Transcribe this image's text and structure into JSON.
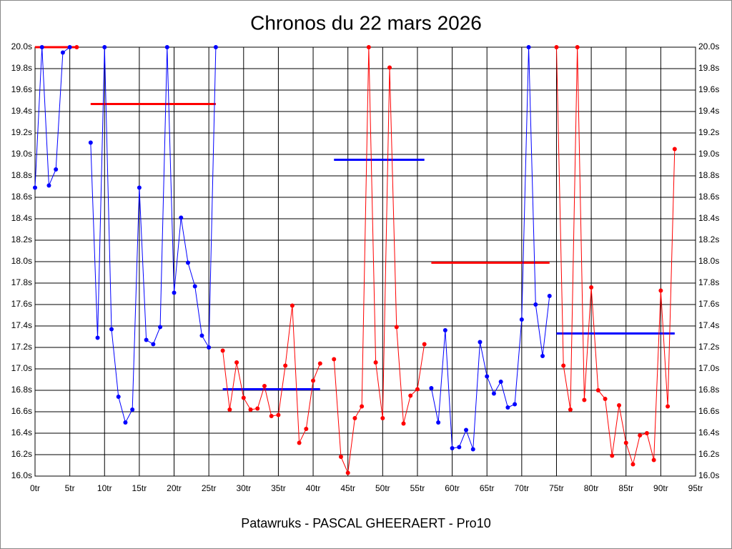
{
  "chart_data": {
    "type": "line",
    "title": "Chronos du 22 mars 2026",
    "footer": "Patawruks - PASCAL GHEERAERT - Pro10",
    "x": [
      0,
      1,
      2,
      3,
      4,
      5,
      6,
      7,
      8,
      9,
      10,
      11,
      12,
      13,
      14,
      15,
      16,
      17,
      18,
      19,
      20,
      21,
      22,
      23,
      24,
      25,
      26,
      27,
      28,
      29,
      30,
      31,
      32,
      33,
      34,
      35,
      36,
      37,
      38,
      39,
      40,
      41,
      42,
      43,
      44,
      45,
      46,
      47,
      48,
      49,
      50,
      51,
      52,
      53,
      54,
      55,
      56,
      57,
      58,
      59,
      60,
      61,
      62,
      63,
      64,
      65,
      66,
      67,
      68,
      69,
      70,
      71,
      72,
      73,
      74,
      75,
      76,
      77,
      78,
      79,
      80,
      81,
      82,
      83,
      84,
      85,
      86,
      87,
      88,
      89,
      90,
      91,
      92
    ],
    "series": [
      {
        "color": "#0000ff",
        "values": [
          18.69,
          20.0,
          18.71,
          18.86,
          19.95,
          20.0,
          null,
          null,
          19.11,
          17.29,
          20.0,
          17.37,
          16.74,
          16.5,
          16.62,
          18.69,
          17.27,
          17.23,
          17.39,
          20.0,
          17.71,
          18.41,
          17.99,
          17.77,
          17.31,
          17.2,
          20.0,
          null,
          null,
          null,
          null,
          null,
          null,
          null,
          null,
          null,
          null,
          null,
          null,
          null,
          null,
          null,
          null,
          null,
          null,
          null,
          null,
          null,
          null,
          null,
          null,
          null,
          null,
          null,
          null,
          null,
          null,
          16.82,
          16.5,
          17.36,
          16.26,
          16.27,
          16.43,
          16.25,
          17.25,
          16.93,
          16.77,
          16.88,
          16.64,
          16.67,
          17.46,
          20.0,
          17.6,
          17.12,
          17.68,
          null,
          null,
          null,
          null,
          null,
          null,
          null,
          null,
          null,
          null,
          null,
          null,
          null,
          null,
          null,
          null,
          null,
          null
        ]
      },
      {
        "color": "#ff0000",
        "values": [
          null,
          null,
          null,
          null,
          null,
          null,
          20.0,
          null,
          null,
          null,
          null,
          null,
          null,
          null,
          null,
          null,
          null,
          null,
          null,
          null,
          null,
          null,
          null,
          null,
          null,
          null,
          null,
          17.17,
          16.62,
          17.06,
          16.73,
          16.62,
          16.63,
          16.84,
          16.56,
          16.57,
          17.03,
          17.59,
          16.31,
          16.44,
          16.89,
          17.05,
          null,
          17.09,
          16.18,
          16.03,
          16.54,
          16.65,
          20.0,
          17.06,
          16.54,
          19.81,
          17.39,
          16.49,
          16.75,
          16.81,
          17.23,
          null,
          null,
          null,
          null,
          null,
          null,
          null,
          null,
          null,
          null,
          null,
          null,
          null,
          null,
          null,
          null,
          null,
          null,
          20.0,
          17.03,
          16.62,
          20.0,
          16.71,
          17.76,
          16.8,
          16.72,
          16.19,
          16.66,
          16.31,
          16.11,
          16.38,
          16.4,
          16.15,
          17.73,
          16.65,
          19.05
        ]
      }
    ],
    "mean_lines": [
      {
        "from": 0,
        "to": 6,
        "value": 20.0,
        "color": "#ff0000"
      },
      {
        "from": 8,
        "to": 26,
        "value": 19.47,
        "color": "#ff0000"
      },
      {
        "from": 27,
        "to": 41,
        "value": 16.81,
        "color": "#0000ff"
      },
      {
        "from": 43,
        "to": 56,
        "value": 18.95,
        "color": "#0000ff"
      },
      {
        "from": 57,
        "to": 74,
        "value": 17.99,
        "color": "#ff0000"
      },
      {
        "from": 75,
        "to": 92,
        "value": 17.33,
        "color": "#0000ff"
      }
    ],
    "xlim": [
      0,
      95
    ],
    "xticks": [
      {
        "value": 0,
        "label": "0tr"
      },
      {
        "value": 5,
        "label": "5tr"
      },
      {
        "value": 10,
        "label": "10tr"
      },
      {
        "value": 15,
        "label": "15tr"
      },
      {
        "value": 20,
        "label": "20tr"
      },
      {
        "value": 25,
        "label": "25tr"
      },
      {
        "value": 30,
        "label": "30tr"
      },
      {
        "value": 35,
        "label": "35tr"
      },
      {
        "value": 40,
        "label": "40tr"
      },
      {
        "value": 45,
        "label": "45tr"
      },
      {
        "value": 50,
        "label": "50tr"
      },
      {
        "value": 55,
        "label": "55tr"
      },
      {
        "value": 60,
        "label": "60tr"
      },
      {
        "value": 65,
        "label": "65tr"
      },
      {
        "value": 70,
        "label": "70tr"
      },
      {
        "value": 75,
        "label": "75tr"
      },
      {
        "value": 80,
        "label": "80tr"
      },
      {
        "value": 85,
        "label": "85tr"
      },
      {
        "value": 90,
        "label": "90tr"
      },
      {
        "value": 95,
        "label": "95tr"
      }
    ],
    "ylim": [
      16.0,
      20.0
    ],
    "yticks": [
      {
        "value": 16.0,
        "label": "16.0s"
      },
      {
        "value": 16.2,
        "label": "16.2s"
      },
      {
        "value": 16.4,
        "label": "16.4s"
      },
      {
        "value": 16.6,
        "label": "16.6s"
      },
      {
        "value": 16.8,
        "label": "16.8s"
      },
      {
        "value": 17.0,
        "label": "17.0s"
      },
      {
        "value": 17.2,
        "label": "17.2s"
      },
      {
        "value": 17.4,
        "label": "17.4s"
      },
      {
        "value": 17.6,
        "label": "17.6s"
      },
      {
        "value": 17.8,
        "label": "17.8s"
      },
      {
        "value": 18.0,
        "label": "18.0s"
      },
      {
        "value": 18.2,
        "label": "18.2s"
      },
      {
        "value": 18.4,
        "label": "18.4s"
      },
      {
        "value": 18.6,
        "label": "18.6s"
      },
      {
        "value": 18.8,
        "label": "18.8s"
      },
      {
        "value": 19.0,
        "label": "19.0s"
      },
      {
        "value": 19.2,
        "label": "19.2s"
      },
      {
        "value": 19.4,
        "label": "19.4s"
      },
      {
        "value": 19.6,
        "label": "19.6s"
      },
      {
        "value": 19.8,
        "label": "19.8s"
      },
      {
        "value": 20.0,
        "label": "20.0s"
      }
    ],
    "grid": true
  }
}
